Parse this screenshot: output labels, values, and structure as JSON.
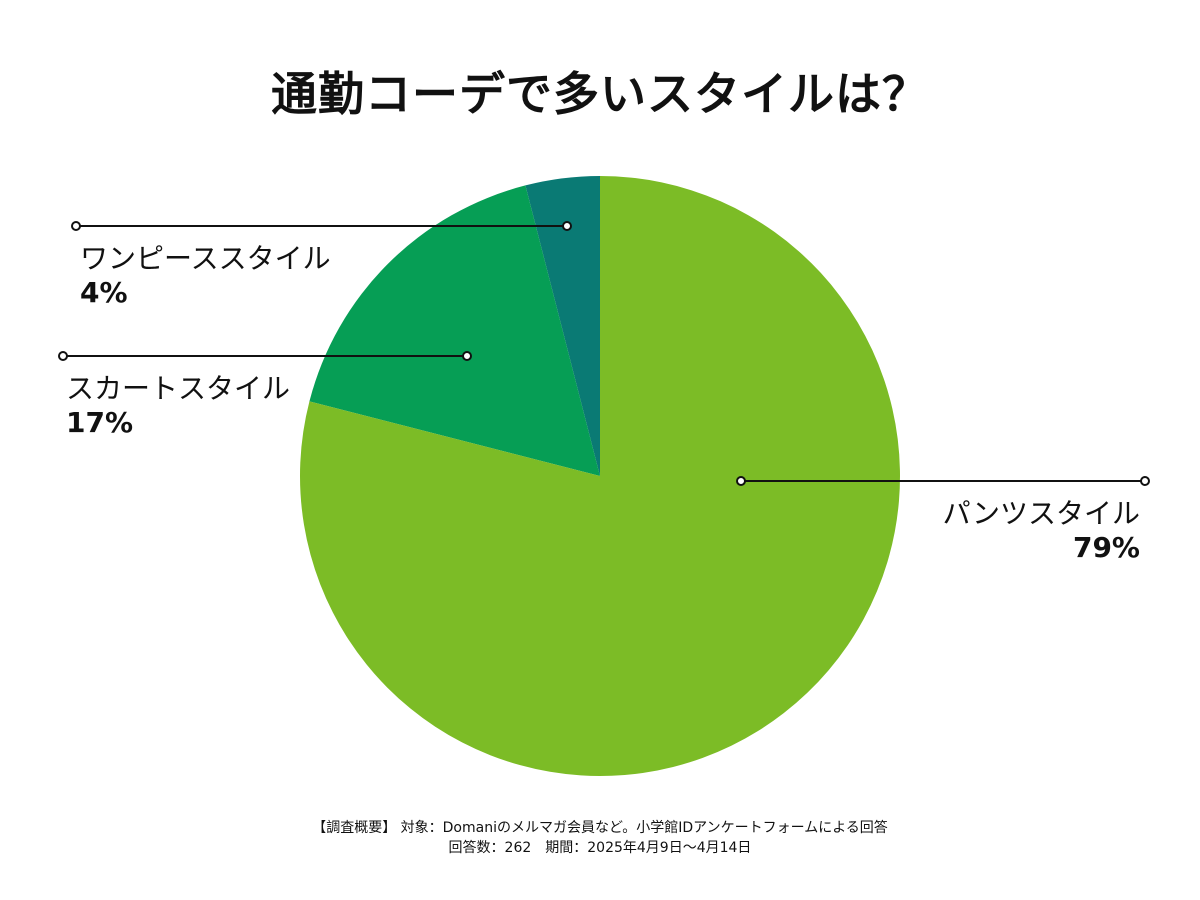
{
  "chart_data": {
    "type": "pie",
    "title": "通勤コーデで多いスタイルは？",
    "categories": [
      "ワンピーススタイル",
      "スカートスタイル",
      "パンツスタイル"
    ],
    "values": [
      4,
      17,
      79
    ],
    "value_labels": [
      "4%",
      "17%",
      "79%"
    ],
    "colors": [
      "#0a7a74",
      "#069e55",
      "#7cbc26"
    ],
    "start_angle_deg": 0,
    "direction": "counter-clockwise",
    "legend": "none",
    "grid": false
  },
  "footnote": {
    "line1": "【調査概要】 対象：Domaniのメルマガ会員など。小学館IDアンケートフォームによる回答",
    "line2": "回答数：262　期間：2025年4月9日〜4月14日"
  }
}
